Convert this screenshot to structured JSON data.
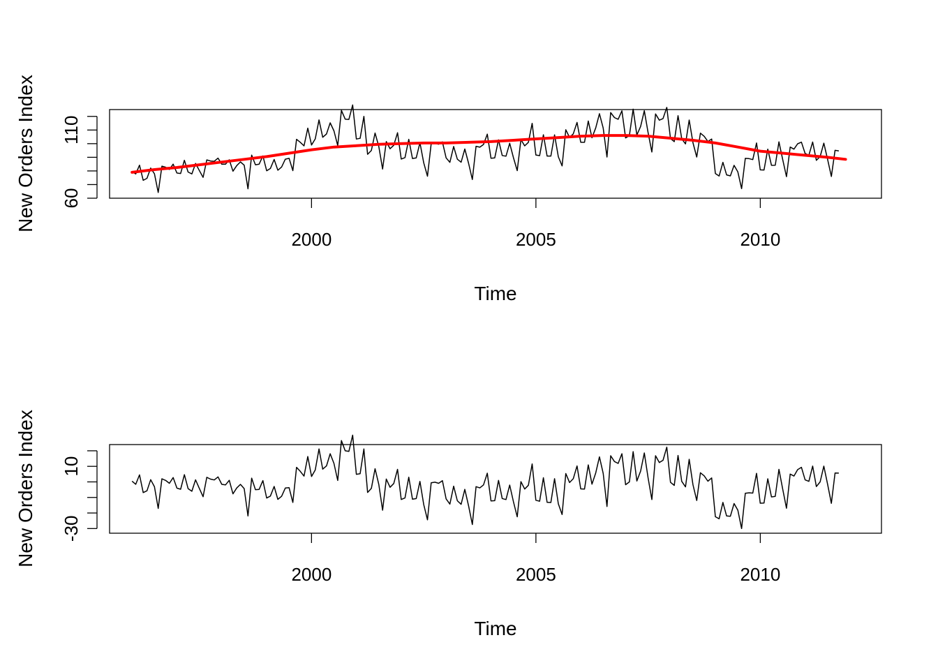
{
  "chart_data": [
    {
      "type": "line",
      "title": "",
      "xlabel": "Time",
      "ylabel": "New Orders Index",
      "xlim": [
        1995.5,
        2012.7
      ],
      "ylim": [
        60,
        125
      ],
      "x_ticks": [
        2000,
        2005,
        2010
      ],
      "x_tick_labels": [
        "2000",
        "2005",
        "2010"
      ],
      "y_ticks": [
        60,
        70,
        80,
        90,
        100,
        110,
        120
      ],
      "y_tick_labels": [
        "60",
        "",
        "",
        "",
        "",
        "110",
        ""
      ],
      "grid": false,
      "x_start": 1996.0,
      "x_step": 0.08333,
      "series": [
        {
          "color": "#000000",
          "values": [
            79.5,
            77.8,
            84.2,
            73.1,
            74.6,
            82.1,
            77.9,
            64.2,
            83.5,
            82.7,
            81.1,
            85.0,
            78.5,
            78.1,
            87.8,
            79.2,
            77.8,
            85.5,
            80.3,
            75.3,
            88.1,
            87.3,
            87.1,
            89.4,
            84.9,
            84.9,
            88.2,
            79.8,
            83.9,
            86.6,
            84.2,
            66.9,
            91.6,
            84.5,
            85.0,
            91.0,
            80.1,
            81.8,
            88.4,
            80.5,
            82.9,
            88.6,
            89.3,
            80.2,
            103.2,
            101.0,
            98.4,
            111.4,
            99.0,
            103.5,
            117.4,
            104.7,
            107.1,
            115.3,
            109.4,
            98.6,
            124.4,
            118.0,
            117.8,
            128.4,
            103.4,
            103.9,
            120.0,
            92.2,
            95.0,
            107.8,
            97.8,
            81.4,
            101.5,
            96.3,
            98.8,
            108.0,
            88.7,
            89.8,
            103.2,
            89.1,
            89.6,
            100.7,
            86.0,
            76.1,
            99.9,
            100.3,
            99.6,
            101.3,
            89.6,
            86.3,
            97.9,
            88.6,
            86.4,
            96.1,
            85.6,
            73.7,
            98.1,
            97.4,
            99.4,
            107.0,
            89.3,
            89.6,
            102.8,
            91.3,
            90.8,
            100.3,
            89.7,
            80.2,
            103.0,
            98.4,
            101.0,
            114.9,
            91.7,
            91.2,
            106.5,
            90.9,
            90.9,
            106.4,
            90.4,
            83.7,
            110.2,
            104.6,
            107.2,
            115.6,
            101.0,
            101.0,
            116.6,
            104.3,
            111.6,
            122.0,
            111.4,
            90.2,
            122.8,
            119.1,
            117.9,
            124.1,
            104.2,
            105.9,
            125.3,
            106.3,
            112.6,
            124.2,
            108.1,
            93.9,
            121.8,
            117.2,
            118.4,
            126.6,
            103.7,
            101.5,
            120.5,
            103.6,
            99.8,
            117.3,
            100.7,
            90.2,
            107.7,
            105.4,
            101.6,
            103.4,
            78.1,
            76.3,
            86.3,
            77.1,
            76.4,
            84.1,
            79.3,
            67.0,
            89.2,
            89.0,
            88.3,
            100.5,
            80.8,
            80.7,
            96.0,
            84.1,
            84.2,
            101.3,
            88.3,
            75.8,
            97.5,
            96.0,
            99.9,
            101.1,
            92.8,
            91.6,
            101.2,
            87.8,
            90.5,
            100.4,
            88.5,
            75.9,
            95.1,
            94.7
          ],
          "style": "thin"
        },
        {
          "color": "#ff0000",
          "x": [
            1996.0,
            1996.5,
            1997.0,
            1997.5,
            1998.0,
            1998.5,
            1999.0,
            1999.5,
            2000.0,
            2000.5,
            2001.0,
            2001.5,
            2002.0,
            2002.5,
            2003.0,
            2003.5,
            2004.0,
            2004.5,
            2005.0,
            2005.5,
            2006.0,
            2006.5,
            2007.0,
            2007.5,
            2008.0,
            2008.5,
            2009.0,
            2009.5,
            2010.0,
            2010.5,
            2011.0,
            2011.5,
            2011.9
          ],
          "values": [
            79,
            81,
            82.5,
            84.5,
            86.5,
            88.5,
            90.5,
            93,
            95.5,
            97.5,
            98.5,
            99.5,
            100,
            100.5,
            100.5,
            101,
            101.5,
            102.5,
            103.5,
            104.5,
            105.5,
            106,
            106,
            105.5,
            104,
            102.5,
            100.5,
            97.5,
            94.5,
            93,
            91.5,
            90,
            88.5
          ],
          "style": "thick"
        }
      ]
    },
    {
      "type": "line",
      "title": "",
      "xlabel": "Time",
      "ylabel": "New Orders Index",
      "xlim": [
        1995.5,
        2012.7
      ],
      "ylim": [
        -33,
        24
      ],
      "x_ticks": [
        2000,
        2005,
        2010
      ],
      "x_tick_labels": [
        "2000",
        "2005",
        "2010"
      ],
      "y_ticks": [
        -30,
        -20,
        -10,
        0,
        10,
        20
      ],
      "y_tick_labels": [
        "-30",
        "",
        "",
        "",
        "10",
        ""
      ],
      "grid": false,
      "series": [
        {
          "color": "#000000",
          "style": "thin",
          "note": "difference of the series above and its red trend line"
        }
      ]
    }
  ]
}
